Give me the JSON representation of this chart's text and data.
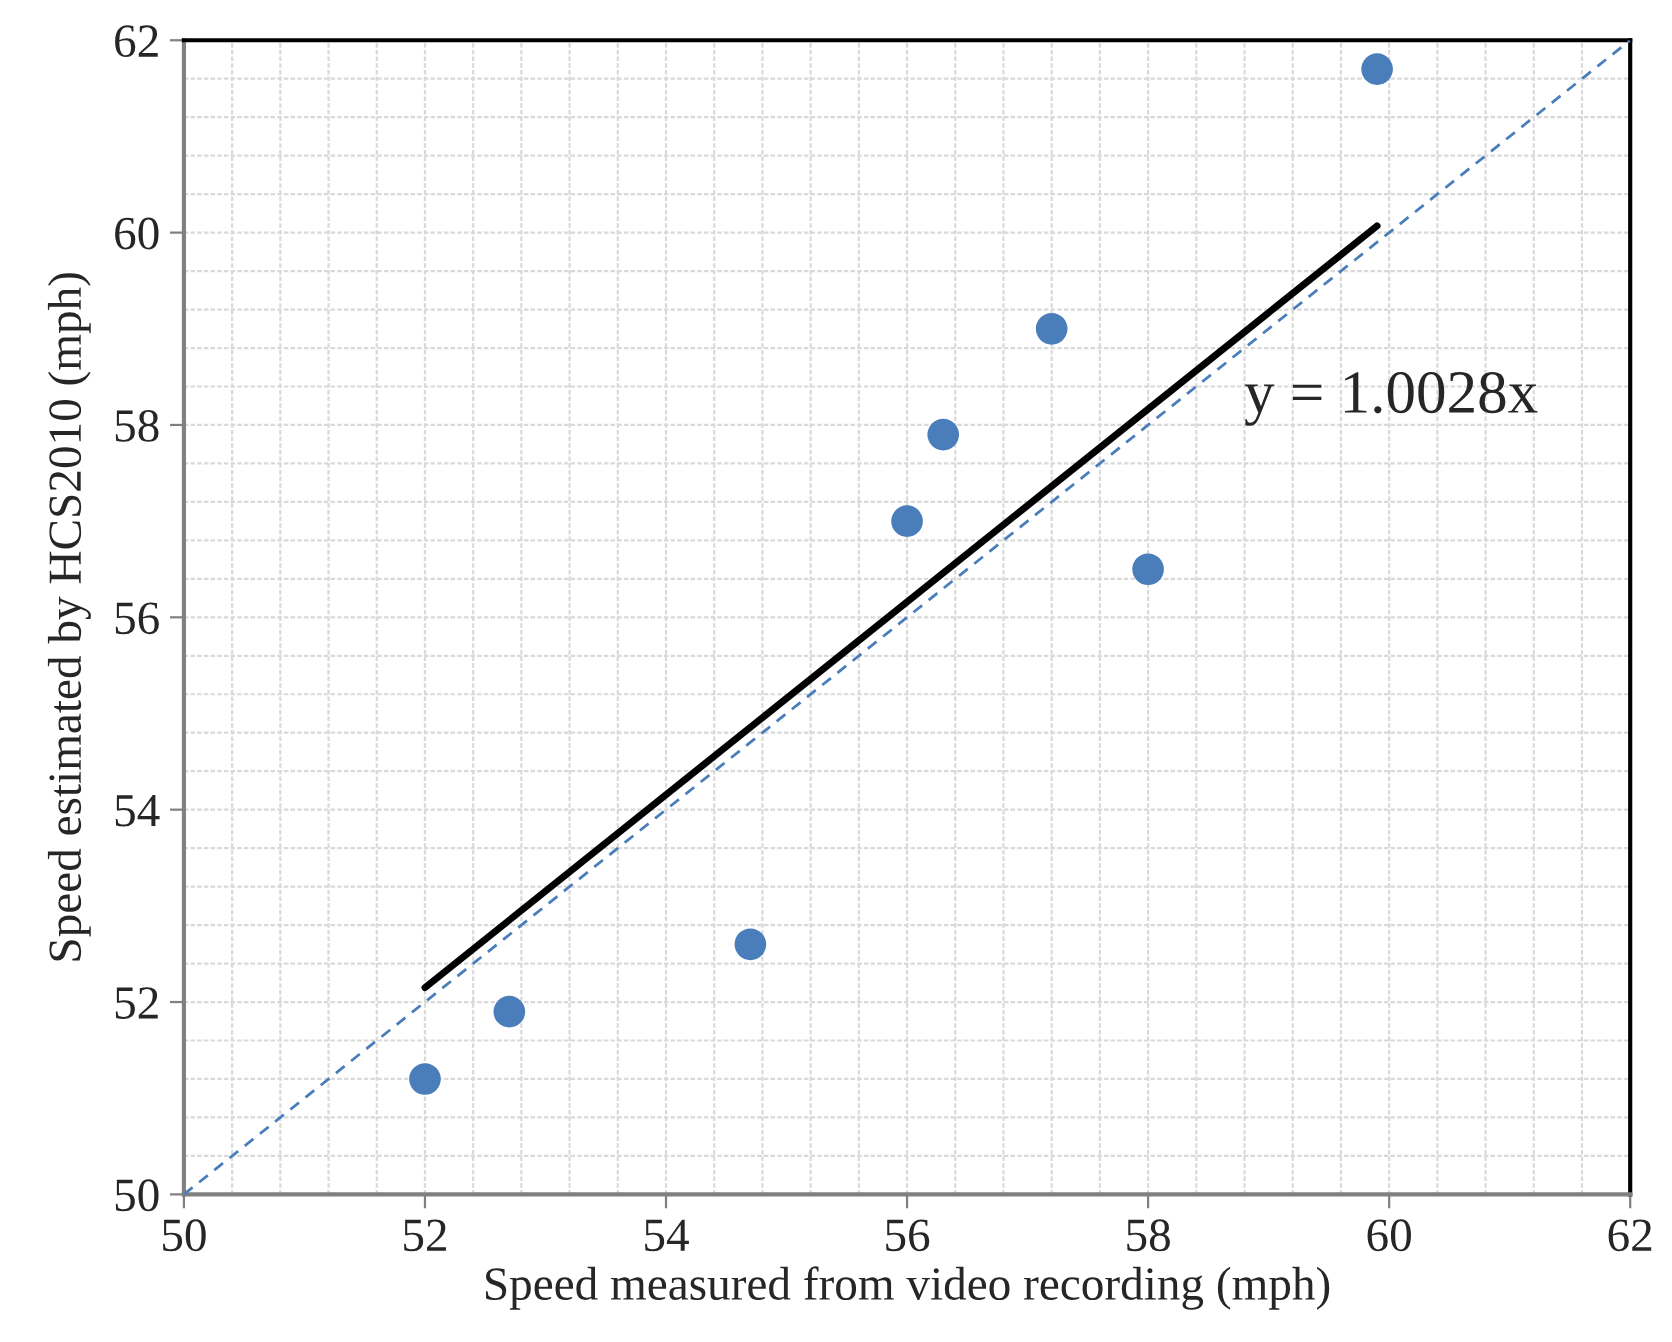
{
  "chart_data": {
    "type": "scatter",
    "xlabel": "Speed measured from video recording (mph)",
    "ylabel": "Speed estimated by HCS2010 (mph)",
    "series": [
      {
        "color": "#4a7ebb",
        "marker": "circle",
        "x": [
          52,
          52.7,
          54.7,
          56,
          56.3,
          57.2,
          58,
          59.9
        ],
        "values": [
          51.2,
          51.9,
          52.6,
          57,
          57.9,
          59,
          56.5,
          61.7
        ]
      },
      {
        "type": "line",
        "color": "#4a7ebb",
        "line_style": "dashed",
        "x": [
          50,
          62
        ],
        "values": [
          50,
          62
        ]
      },
      {
        "type": "line",
        "color": "#000000",
        "line_style": "solid",
        "x": [
          52,
          59.9
        ],
        "values": [
          52.15,
          60.07
        ]
      }
    ],
    "annotations": [
      "y = 1.0028x"
    ],
    "xlim": [
      50,
      62
    ],
    "ylim": [
      50,
      62
    ],
    "xticks": [
      50,
      {
        "value": 50.4,
        "label": null
      },
      {
        "value": 50.8,
        "label": null
      },
      {
        "value": 51.2,
        "label": null
      },
      {
        "value": 51.6,
        "label": null
      },
      52,
      {
        "value": 52.4,
        "label": null
      },
      {
        "value": 52.8,
        "label": null
      },
      {
        "value": 53.2,
        "label": null
      },
      {
        "value": 53.6,
        "label": null
      },
      54,
      {
        "value": 54.4,
        "label": null
      },
      {
        "value": 54.8,
        "label": null
      },
      {
        "value": 55.2,
        "label": null
      },
      {
        "value": 55.6,
        "label": null
      },
      56,
      {
        "value": 56.4,
        "label": null
      },
      {
        "value": 56.8,
        "label": null
      },
      {
        "value": 57.2,
        "label": null
      },
      {
        "value": 57.6,
        "label": null
      },
      58,
      {
        "value": 58.4,
        "label": null
      },
      {
        "value": 58.8,
        "label": null
      },
      {
        "value": 59.2,
        "label": null
      },
      {
        "value": 59.6,
        "label": null
      },
      60,
      {
        "value": 60.4,
        "label": null
      },
      {
        "value": 60.8,
        "label": null
      },
      {
        "value": 61.2,
        "label": null
      },
      {
        "value": 61.6,
        "label": null
      },
      62
    ],
    "yticks": [
      50,
      {
        "value": 50.4,
        "label": null
      },
      {
        "value": 50.8,
        "label": null
      },
      {
        "value": 51.2,
        "label": null
      },
      {
        "value": 51.6,
        "label": null
      },
      52,
      {
        "value": 52.4,
        "label": null
      },
      {
        "value": 52.8,
        "label": null
      },
      {
        "value": 53.2,
        "label": null
      },
      {
        "value": 53.6,
        "label": null
      },
      54,
      {
        "value": 54.4,
        "label": null
      },
      {
        "value": 54.8,
        "label": null
      },
      {
        "value": 55.2,
        "label": null
      },
      {
        "value": 55.6,
        "label": null
      },
      56,
      {
        "value": 56.4,
        "label": null
      },
      {
        "value": 56.8,
        "label": null
      },
      {
        "value": 57.2,
        "label": null
      },
      {
        "value": 57.6,
        "label": null
      },
      58,
      {
        "value": 58.4,
        "label": null
      },
      {
        "value": 58.8,
        "label": null
      },
      {
        "value": 59.2,
        "label": null
      },
      {
        "value": 59.6,
        "label": null
      },
      60,
      {
        "value": 60.4,
        "label": null
      },
      {
        "value": 60.8,
        "label": null
      },
      {
        "value": 61.2,
        "label": null
      },
      {
        "value": 61.6,
        "label": null
      },
      62
    ],
    "grid": true
  }
}
